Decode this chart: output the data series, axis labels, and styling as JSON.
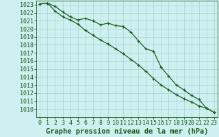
{
  "title": "Graphe pression niveau de la mer (hPa)",
  "background_color": "#cff0f0",
  "grid_color": "#aad8d8",
  "line_color": "#1a5c1a",
  "x_values": [
    0,
    1,
    2,
    3,
    4,
    5,
    6,
    7,
    8,
    9,
    10,
    11,
    12,
    13,
    14,
    15,
    16,
    17,
    18,
    19,
    20,
    21,
    22,
    23
  ],
  "series1": [
    1023.1,
    1023.2,
    1022.8,
    1022.1,
    1021.5,
    1021.1,
    1021.3,
    1021.0,
    1020.5,
    1020.7,
    1020.4,
    1020.3,
    1019.6,
    1018.5,
    1017.5,
    1017.2,
    1015.2,
    1014.1,
    1013.0,
    1012.4,
    1011.7,
    1011.2,
    1010.1,
    1009.6
  ],
  "series2": [
    1023.1,
    1023.2,
    1022.2,
    1021.5,
    1021.1,
    1020.6,
    1019.8,
    1019.2,
    1018.6,
    1018.1,
    1017.5,
    1016.9,
    1016.2,
    1015.5,
    1014.7,
    1013.8,
    1013.0,
    1012.4,
    1011.8,
    1011.3,
    1010.9,
    1010.4,
    1010.1,
    1009.6
  ],
  "ylim_min": 1009.0,
  "ylim_max": 1023.5,
  "ytick_min": 1010,
  "ytick_max": 1023,
  "title_fontsize": 7.5,
  "tick_fontsize": 6.0
}
